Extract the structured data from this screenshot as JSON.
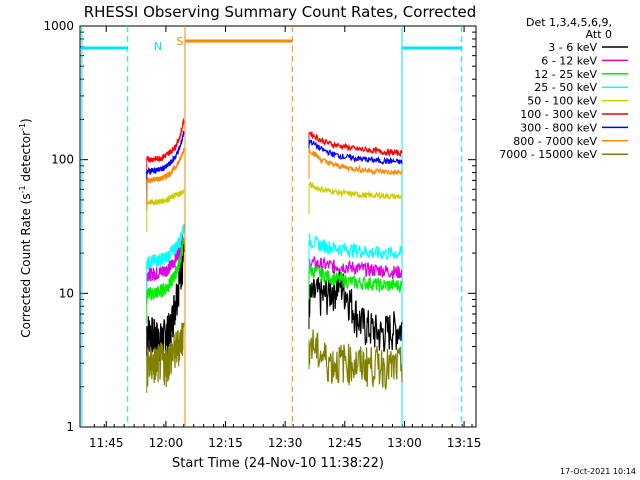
{
  "chart_data": {
    "type": "line",
    "title": "RHESSI Observing Summary Count Rates, Corrected",
    "xlabel": "Start Time (24-Nov-10 11:38:22)",
    "ylabel_main": "Corrected Count Rate (s",
    "ylabel_sup1": "-1",
    "ylabel_mid": " detector",
    "ylabel_sup2": "-1",
    "ylabel_end": ")",
    "ylog": true,
    "xlim": [
      11.64,
      13.3
    ],
    "ylim": [
      1,
      1000
    ],
    "x_ticks": [
      {
        "v": 11.75,
        "label": "11:45"
      },
      {
        "v": 12.0,
        "label": "12:00"
      },
      {
        "v": 12.25,
        "label": "12:15"
      },
      {
        "v": 12.5,
        "label": "12:30"
      },
      {
        "v": 12.75,
        "label": "12:45"
      },
      {
        "v": 13.0,
        "label": "13:00"
      },
      {
        "v": 13.25,
        "label": "13:15"
      }
    ],
    "y_ticks": [
      {
        "v": 1,
        "label": "1"
      },
      {
        "v": 10,
        "label": "10"
      },
      {
        "v": 100,
        "label": "100"
      },
      {
        "v": 1000,
        "label": "1000"
      }
    ],
    "legend_header": [
      "Det 1,3,4,5,6,9,",
      "Att 0"
    ],
    "legend_placement": "right",
    "series": [
      {
        "name": "3 - 6 keV",
        "color": "#000000",
        "seg1": [
          [
            11.92,
            5.5
          ],
          [
            11.95,
            4.8
          ],
          [
            11.98,
            4.5
          ],
          [
            12.0,
            5.0
          ],
          [
            12.02,
            5.5
          ],
          [
            12.04,
            9.0
          ],
          [
            12.06,
            14.0
          ],
          [
            12.075,
            20.0
          ]
        ],
        "seg2": [
          [
            12.6,
            9.0
          ],
          [
            12.63,
            10.0
          ],
          [
            12.66,
            9.5
          ],
          [
            12.7,
            11.0
          ],
          [
            12.73,
            12.0
          ],
          [
            12.76,
            10.0
          ],
          [
            12.79,
            7.5
          ],
          [
            12.82,
            6.0
          ],
          [
            12.86,
            5.5
          ],
          [
            12.9,
            5.0
          ],
          [
            12.95,
            5.5
          ],
          [
            12.99,
            5.5
          ]
        ]
      },
      {
        "name": "6 - 12 keV",
        "color": "#e000e0",
        "seg1": [
          [
            11.92,
            14.0
          ],
          [
            11.95,
            14.0
          ],
          [
            11.98,
            14.5
          ],
          [
            12.0,
            15.0
          ],
          [
            12.02,
            16.0
          ],
          [
            12.04,
            18.0
          ],
          [
            12.06,
            22.0
          ],
          [
            12.075,
            30.0
          ]
        ],
        "seg2": [
          [
            12.6,
            17.0
          ],
          [
            12.65,
            16.5
          ],
          [
            12.7,
            16.0
          ],
          [
            12.75,
            16.0
          ],
          [
            12.8,
            15.5
          ],
          [
            12.85,
            15.0
          ],
          [
            12.9,
            15.0
          ],
          [
            12.95,
            14.5
          ],
          [
            12.99,
            14.5
          ]
        ]
      },
      {
        "name": "12 - 25 keV",
        "color": "#00ee00",
        "seg1": [
          [
            11.92,
            10.0
          ],
          [
            11.95,
            10.0
          ],
          [
            11.98,
            10.5
          ],
          [
            12.0,
            11.0
          ],
          [
            12.02,
            12.0
          ],
          [
            12.04,
            14.0
          ],
          [
            12.06,
            18.0
          ],
          [
            12.075,
            25.0
          ]
        ],
        "seg2": [
          [
            12.6,
            15.0
          ],
          [
            12.65,
            14.0
          ],
          [
            12.7,
            13.0
          ],
          [
            12.75,
            12.5
          ],
          [
            12.8,
            12.0
          ],
          [
            12.85,
            12.0
          ],
          [
            12.9,
            11.5
          ],
          [
            12.95,
            11.5
          ],
          [
            12.99,
            11.5
          ]
        ]
      },
      {
        "name": "25 - 50 keV",
        "color": "#00ffff",
        "seg1": [
          [
            11.92,
            17.0
          ],
          [
            11.95,
            17.5
          ],
          [
            11.98,
            18.0
          ],
          [
            12.0,
            18.5
          ],
          [
            12.02,
            20.0
          ],
          [
            12.04,
            22.0
          ],
          [
            12.06,
            25.0
          ],
          [
            12.075,
            32.0
          ]
        ],
        "seg2": [
          [
            12.6,
            25.0
          ],
          [
            12.65,
            23.0
          ],
          [
            12.7,
            22.0
          ],
          [
            12.75,
            21.5
          ],
          [
            12.8,
            21.0
          ],
          [
            12.85,
            20.5
          ],
          [
            12.9,
            20.0
          ],
          [
            12.95,
            20.0
          ],
          [
            12.99,
            20.0
          ]
        ]
      },
      {
        "name": "50 - 100 keV",
        "color": "#cccc00",
        "seg1": [
          [
            11.92,
            48.0
          ],
          [
            11.95,
            48.0
          ],
          [
            11.98,
            49.0
          ],
          [
            12.0,
            50.0
          ],
          [
            12.02,
            52.0
          ],
          [
            12.04,
            54.0
          ],
          [
            12.06,
            56.0
          ],
          [
            12.075,
            58.0
          ]
        ],
        "seg2": [
          [
            12.6,
            65.0
          ],
          [
            12.65,
            60.0
          ],
          [
            12.7,
            58.0
          ],
          [
            12.75,
            56.0
          ],
          [
            12.8,
            55.0
          ],
          [
            12.85,
            54.0
          ],
          [
            12.9,
            54.0
          ],
          [
            12.95,
            53.0
          ],
          [
            12.99,
            53.0
          ]
        ]
      },
      {
        "name": "100 - 300 keV",
        "color": "#ff0000",
        "seg1": [
          [
            11.92,
            100.0
          ],
          [
            11.95,
            101.0
          ],
          [
            11.98,
            103.0
          ],
          [
            12.0,
            108.0
          ],
          [
            12.02,
            115.0
          ],
          [
            12.04,
            125.0
          ],
          [
            12.06,
            150.0
          ],
          [
            12.075,
            195.0
          ]
        ],
        "seg2": [
          [
            12.6,
            160.0
          ],
          [
            12.65,
            140.0
          ],
          [
            12.7,
            130.0
          ],
          [
            12.75,
            125.0
          ],
          [
            12.8,
            120.0
          ],
          [
            12.85,
            118.0
          ],
          [
            12.9,
            115.0
          ],
          [
            12.95,
            113.0
          ],
          [
            12.99,
            112.0
          ]
        ]
      },
      {
        "name": "300 - 800 keV",
        "color": "#0000ff",
        "seg1": [
          [
            11.92,
            82.0
          ],
          [
            11.95,
            83.0
          ],
          [
            11.98,
            85.0
          ],
          [
            12.0,
            88.0
          ],
          [
            12.02,
            95.0
          ],
          [
            12.04,
            105.0
          ],
          [
            12.06,
            125.0
          ],
          [
            12.075,
            160.0
          ]
        ],
        "seg2": [
          [
            12.6,
            140.0
          ],
          [
            12.65,
            120.0
          ],
          [
            12.7,
            110.0
          ],
          [
            12.75,
            105.0
          ],
          [
            12.8,
            102.0
          ],
          [
            12.85,
            100.0
          ],
          [
            12.9,
            98.0
          ],
          [
            12.95,
            97.0
          ],
          [
            12.99,
            96.0
          ]
        ]
      },
      {
        "name": "800 - 7000 keV",
        "color": "#ff8800",
        "seg1": [
          [
            11.92,
            70.0
          ],
          [
            11.95,
            71.0
          ],
          [
            11.98,
            72.0
          ],
          [
            12.0,
            75.0
          ],
          [
            12.02,
            80.0
          ],
          [
            12.04,
            88.0
          ],
          [
            12.06,
            100.0
          ],
          [
            12.075,
            120.0
          ]
        ],
        "seg2": [
          [
            12.6,
            120.0
          ],
          [
            12.65,
            100.0
          ],
          [
            12.7,
            92.0
          ],
          [
            12.75,
            88.0
          ],
          [
            12.8,
            85.0
          ],
          [
            12.85,
            83.0
          ],
          [
            12.9,
            82.0
          ],
          [
            12.95,
            80.0
          ],
          [
            12.99,
            80.0
          ]
        ]
      },
      {
        "name": "7000 - 15000 keV",
        "color": "#808000",
        "seg1": [
          [
            11.92,
            3.0
          ],
          [
            11.95,
            3.0
          ],
          [
            11.98,
            3.2
          ],
          [
            12.0,
            3.0
          ],
          [
            12.02,
            3.5
          ],
          [
            12.04,
            3.8
          ],
          [
            12.06,
            4.5
          ],
          [
            12.075,
            5.0
          ]
        ],
        "seg2": [
          [
            12.6,
            4.5
          ],
          [
            12.65,
            3.5
          ],
          [
            12.7,
            3.0
          ],
          [
            12.75,
            3.2
          ],
          [
            12.8,
            3.0
          ],
          [
            12.85,
            3.0
          ],
          [
            12.9,
            3.0
          ],
          [
            12.95,
            2.8
          ],
          [
            12.99,
            3.0
          ]
        ]
      }
    ],
    "night_bars": [
      [
        11.64,
        11.84
      ],
      [
        12.08,
        12.53
      ],
      [
        12.99,
        13.24
      ]
    ],
    "night_label": "N",
    "saa_label": "S",
    "cyan_lines": [
      11.648,
      11.84,
      12.99,
      13.24
    ],
    "orange_lines": [
      12.08,
      12.53
    ],
    "timestamp": "17-Oct-2021 10:14"
  }
}
